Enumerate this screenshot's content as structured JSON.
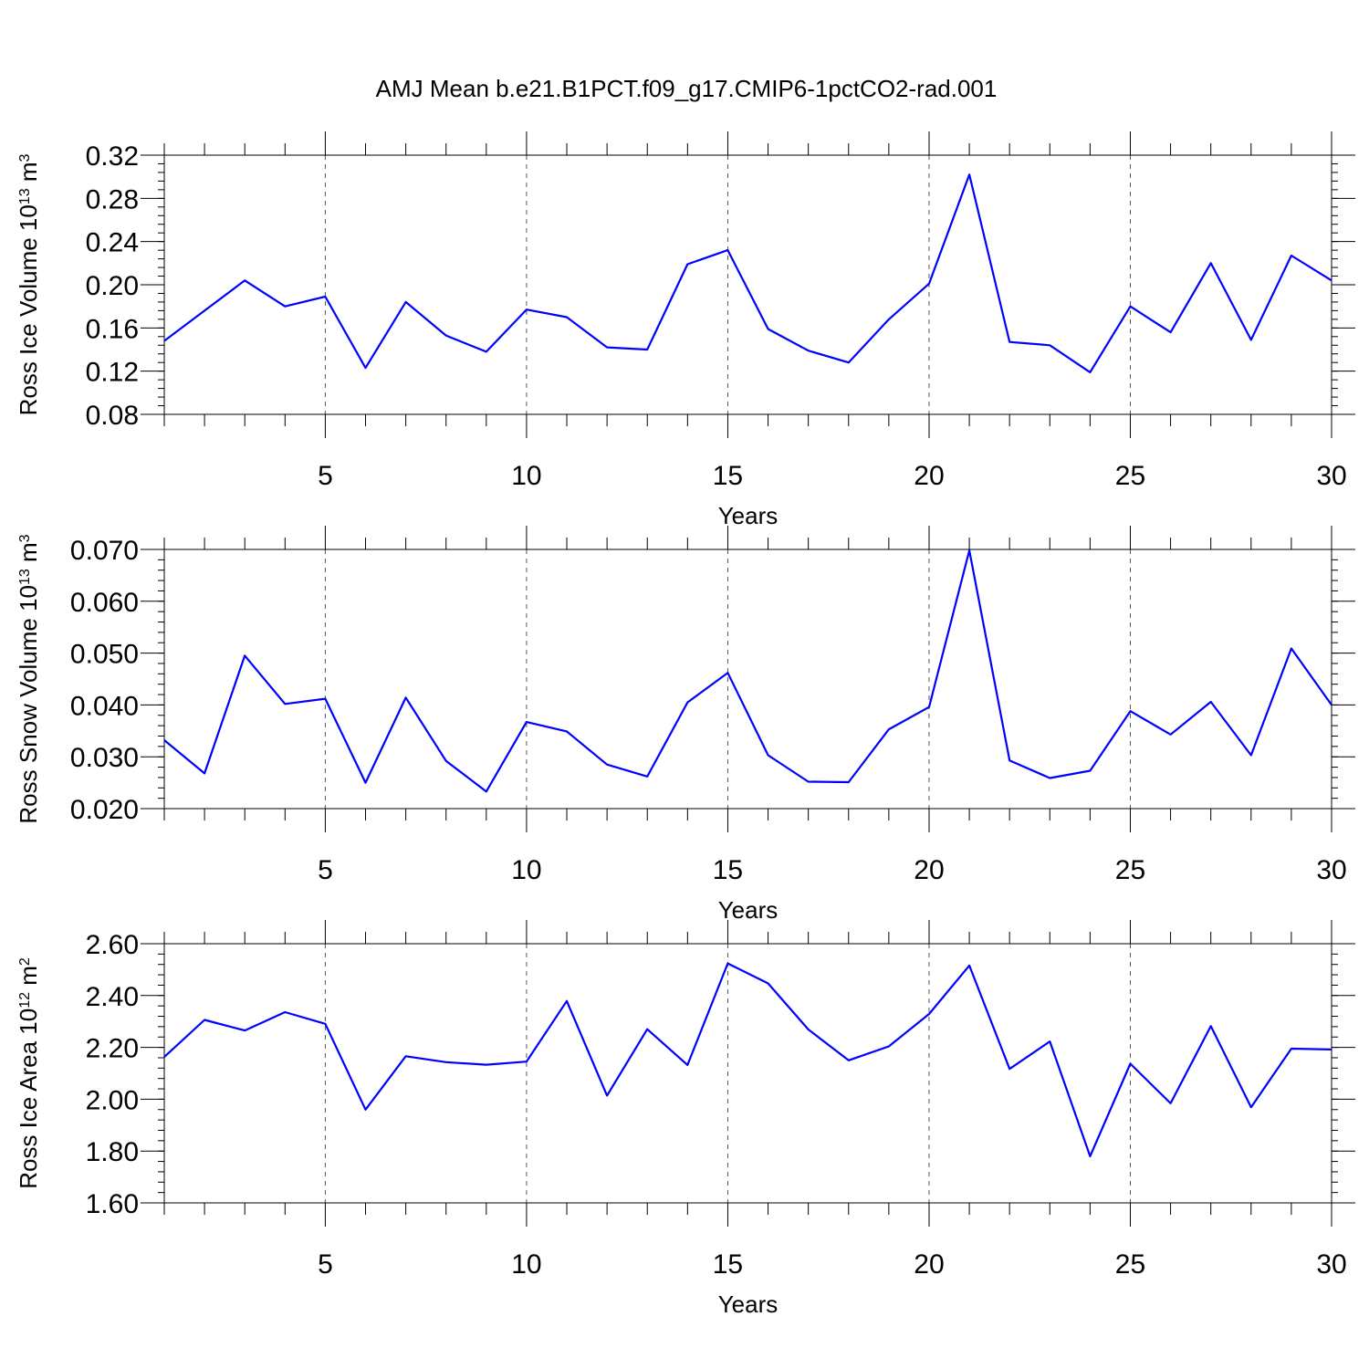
{
  "figure_title": "AMJ Mean b.e21.B1PCT.f09_g17.CMIP6-1pctCO2-rad.001",
  "colors": {
    "line": "#0000ff",
    "axes": "#000000",
    "grid": "#555555"
  },
  "chart_data": [
    {
      "type": "line",
      "xlabel": "Years",
      "ylabel": {
        "text": "Ross Ice Volume 10",
        "exp": "13",
        "unit": " m",
        "unit_exp": "3"
      },
      "xlim": [
        1,
        30
      ],
      "ylim": [
        0.08,
        0.32
      ],
      "xticks": [
        5,
        10,
        15,
        20,
        25,
        30
      ],
      "yticks": [
        0.08,
        0.12,
        0.16,
        0.2,
        0.24,
        0.28,
        0.32
      ],
      "ytick_labels": [
        "0.08",
        "0.12",
        "0.16",
        "0.20",
        "0.24",
        "0.28",
        "0.32"
      ],
      "y_minor_step": 0.008,
      "grid": "vertical dashed at major x ticks",
      "x": [
        1,
        2,
        3,
        4,
        5,
        6,
        7,
        8,
        9,
        10,
        11,
        12,
        13,
        14,
        15,
        16,
        17,
        18,
        19,
        20,
        21,
        22,
        23,
        24,
        25,
        26,
        27,
        28,
        29,
        30
      ],
      "values": [
        0.148,
        0.176,
        0.204,
        0.18,
        0.189,
        0.123,
        0.184,
        0.153,
        0.138,
        0.177,
        0.17,
        0.142,
        0.14,
        0.219,
        0.232,
        0.159,
        0.139,
        0.128,
        0.168,
        0.201,
        0.302,
        0.147,
        0.144,
        0.119,
        0.18,
        0.156,
        0.22,
        0.149,
        0.227,
        0.204
      ]
    },
    {
      "type": "line",
      "xlabel": "Years",
      "ylabel": {
        "text": "Ross Snow Volume 10",
        "exp": "13",
        "unit": " m",
        "unit_exp": "3"
      },
      "xlim": [
        1,
        30
      ],
      "ylim": [
        0.02,
        0.07
      ],
      "xticks": [
        5,
        10,
        15,
        20,
        25,
        30
      ],
      "yticks": [
        0.02,
        0.03,
        0.04,
        0.05,
        0.06,
        0.07
      ],
      "ytick_labels": [
        "0.020",
        "0.030",
        "0.040",
        "0.050",
        "0.060",
        "0.070"
      ],
      "y_minor_step": 0.002,
      "grid": "vertical dashed at major x ticks",
      "x": [
        1,
        2,
        3,
        4,
        5,
        6,
        7,
        8,
        9,
        10,
        11,
        12,
        13,
        14,
        15,
        16,
        17,
        18,
        19,
        20,
        21,
        22,
        23,
        24,
        25,
        26,
        27,
        28,
        29,
        30
      ],
      "values": [
        0.0332,
        0.0268,
        0.0495,
        0.0402,
        0.0412,
        0.025,
        0.0414,
        0.0292,
        0.0233,
        0.0367,
        0.0349,
        0.0285,
        0.0262,
        0.0405,
        0.0462,
        0.0303,
        0.0252,
        0.0251,
        0.0353,
        0.0396,
        0.0698,
        0.0293,
        0.0259,
        0.0273,
        0.0388,
        0.0343,
        0.0406,
        0.0303,
        0.0509,
        0.04
      ]
    },
    {
      "type": "line",
      "xlabel": "Years",
      "ylabel": {
        "text": "Ross Ice Area 10",
        "exp": "12",
        "unit": " m",
        "unit_exp": "2"
      },
      "xlim": [
        1,
        30
      ],
      "ylim": [
        1.6,
        2.6
      ],
      "xticks": [
        5,
        10,
        15,
        20,
        25,
        30
      ],
      "yticks": [
        1.6,
        1.8,
        2.0,
        2.2,
        2.4,
        2.6
      ],
      "ytick_labels": [
        "1.60",
        "1.80",
        "2.00",
        "2.20",
        "2.40",
        "2.60"
      ],
      "y_minor_step": 0.04,
      "grid": "vertical dashed at major x ticks",
      "x": [
        1,
        2,
        3,
        4,
        5,
        6,
        7,
        8,
        9,
        10,
        11,
        12,
        13,
        14,
        15,
        16,
        17,
        18,
        19,
        20,
        21,
        22,
        23,
        24,
        25,
        26,
        27,
        28,
        29,
        30
      ],
      "values": [
        2.163,
        2.306,
        2.265,
        2.336,
        2.291,
        1.96,
        2.166,
        2.143,
        2.133,
        2.145,
        2.379,
        2.014,
        2.27,
        2.132,
        2.524,
        2.447,
        2.269,
        2.15,
        2.204,
        2.329,
        2.516,
        2.117,
        2.223,
        1.78,
        2.137,
        1.984,
        2.282,
        1.969,
        2.195,
        2.192
      ]
    }
  ]
}
